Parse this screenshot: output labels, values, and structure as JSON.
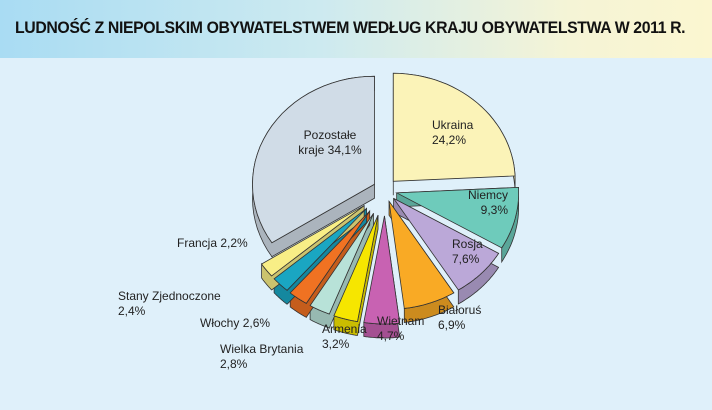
{
  "chart_data": {
    "type": "pie",
    "title": "LUDNOŚĆ Z NIEPOLSKIM OBYWATELSTWEM WEDŁUG KRAJU OBYWATELSTWA W 2011 R.",
    "style": "exploded 3D pie",
    "slices": [
      {
        "label": "Ukraina",
        "value": 24.2,
        "text": "24,2%",
        "color": "#fbf3b8"
      },
      {
        "label": "Niemcy",
        "value": 9.3,
        "text": "9,3%",
        "color": "#6ecbbb"
      },
      {
        "label": "Rosja",
        "value": 7.6,
        "text": "7,6%",
        "color": "#bba8d8"
      },
      {
        "label": "Białoruś",
        "value": 6.9,
        "text": "6,9%",
        "color": "#f9aa25"
      },
      {
        "label": "Wietnam",
        "value": 4.7,
        "text": "4,7%",
        "color": "#c862b2"
      },
      {
        "label": "Armenia",
        "value": 3.2,
        "text": "3,2%",
        "color": "#f6e600"
      },
      {
        "label": "Wielka Brytania",
        "value": 2.8,
        "text": "2,8%",
        "color": "#b8e2d8"
      },
      {
        "label": "Włochy",
        "value": 2.6,
        "text": "2,6%",
        "color": "#f07222"
      },
      {
        "label": "Stany Zjednoczone",
        "value": 2.4,
        "text": "2,4%",
        "color": "#1aa6c2"
      },
      {
        "label": "Francja",
        "value": 2.2,
        "text": "2,2%",
        "color": "#f8ee86"
      },
      {
        "label": "Pozostałe kraje",
        "value": 34.1,
        "text": "34,1%",
        "color": "#d0dce7"
      }
    ]
  }
}
